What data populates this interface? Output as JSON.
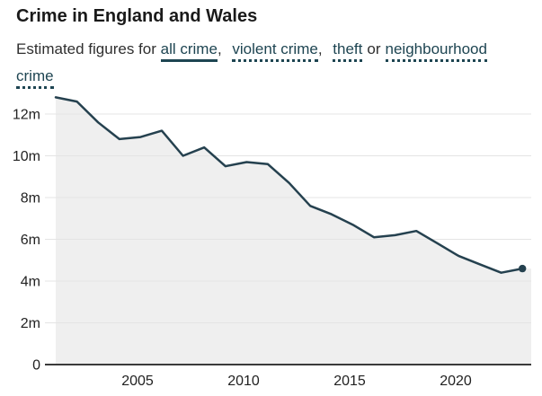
{
  "header": {
    "title": "Crime in England and Wales",
    "subtitle_prefix": "Estimated figures for",
    "terms": [
      {
        "label": "all crime",
        "underline": "solid",
        "suffix": ","
      },
      {
        "label": "violent crime",
        "underline": "dotted",
        "suffix": ","
      },
      {
        "label": "theft",
        "underline": "dotted",
        "suffix": "or"
      },
      {
        "label": "neighbourhood crime",
        "underline": "dotted",
        "suffix": ""
      }
    ]
  },
  "chart_data": {
    "type": "area",
    "title": "Crime in England and Wales",
    "subtitle": "Estimated figures for all crime, violent crime, theft or neighbourhood crime",
    "x": [
      2001,
      2002,
      2003,
      2004,
      2005,
      2006,
      2007,
      2008,
      2009,
      2010,
      2011,
      2012,
      2013,
      2014,
      2015,
      2016,
      2017,
      2018,
      2019,
      2020,
      2021,
      2022,
      2023
    ],
    "series": [
      {
        "name": "all crime",
        "values": [
          12.8,
          12.6,
          11.6,
          10.8,
          10.9,
          11.2,
          10.0,
          10.4,
          9.5,
          9.7,
          9.6,
          8.7,
          7.6,
          7.2,
          6.7,
          6.1,
          6.2,
          6.4,
          5.8,
          5.2,
          4.8,
          4.4,
          4.6
        ]
      }
    ],
    "unit": "m",
    "x_ticks": [
      2005,
      2010,
      2015,
      2020
    ],
    "y_ticks": [
      0,
      2,
      4,
      6,
      8,
      10,
      12
    ],
    "y_tick_labels": [
      "0",
      "2m",
      "4m",
      "6m",
      "8m",
      "10m",
      "12m"
    ],
    "ylim": [
      0,
      13.2
    ],
    "grid": "horizontal",
    "legend_position": "in-subtitle",
    "end_dot": true
  },
  "colors": {
    "line": "#25414f",
    "dot": "#25414f",
    "area_fill": "#efefef",
    "grid": "#e4e4e4",
    "axis_line": "#3a3a3a",
    "tick_text": "#222222",
    "legend": "#1e4552"
  }
}
